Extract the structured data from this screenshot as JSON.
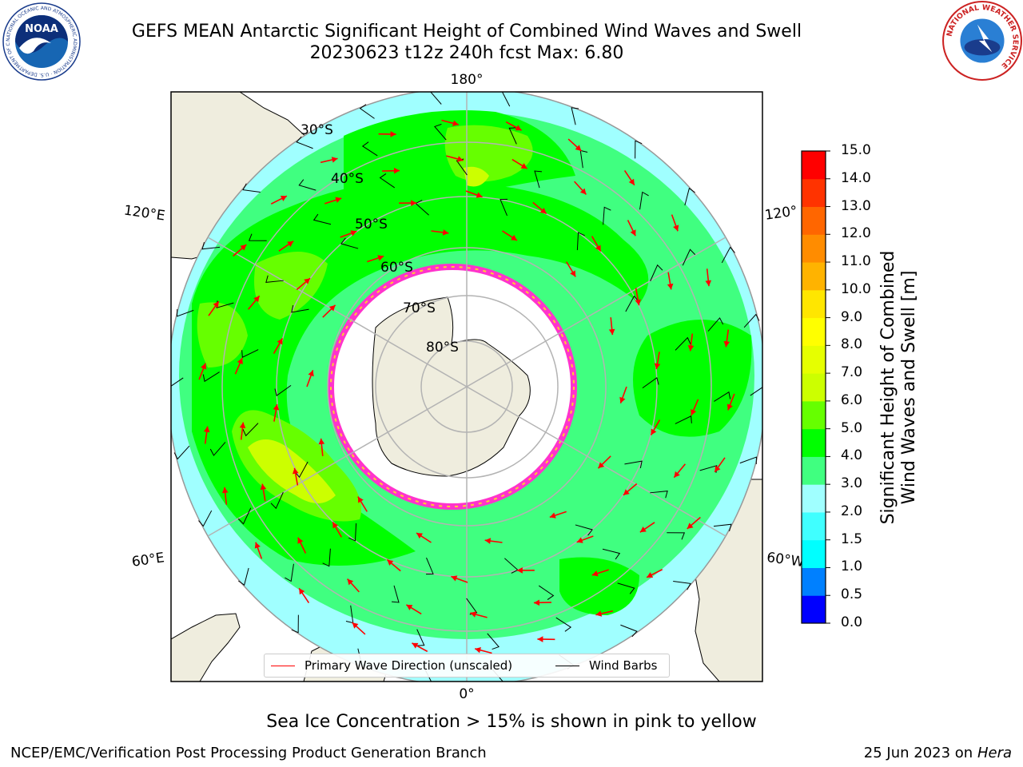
{
  "header": {
    "title_line1": "GEFS MEAN Antarctic Significant Height of Combined Wind Waves and Swell",
    "title_line2": "20230623 t12z 240h fcst   Max: 6.80"
  },
  "logos": {
    "left": {
      "text": "NOAA",
      "ring_text": "NATIONAL OCEANIC AND ATMOSPHERIC ADMINISTRATION · U.S. DEPARTMENT OF COMMERCE",
      "icon": "noaa-logo-icon"
    },
    "right": {
      "ring_text": "NATIONAL WEATHER SERVICE",
      "icon": "nws-logo-icon"
    }
  },
  "map": {
    "projection": "south-polar-stereographic",
    "longitude_labels": [
      "180°",
      "120°E",
      "120°",
      "60°E",
      "60°W",
      "0°"
    ],
    "latitude_labels": [
      "30°S",
      "40°S",
      "50°S",
      "60°S",
      "70°S",
      "80°S"
    ],
    "colors": {
      "land": "#efedde",
      "ice": "#ffffff",
      "ice_edge": "#ff33cc",
      "grid": "#b3b3b3",
      "arrow": "#ff0000",
      "barb": "#000000"
    }
  },
  "colorbar": {
    "title_line1": "Significant Height of Combined",
    "title_line2": "Wind Waves and Swell [m]",
    "ticks": [
      "15.0",
      "14.0",
      "13.0",
      "12.0",
      "11.0",
      "10.0",
      "9.0",
      "8.0",
      "7.0",
      "6.0",
      "5.0",
      "4.0",
      "3.0",
      "2.0",
      "1.5",
      "1.0",
      "0.5",
      "0.0"
    ],
    "bands": [
      {
        "from": 0.0,
        "to": 0.5,
        "color": "#0000ff"
      },
      {
        "from": 0.5,
        "to": 1.0,
        "color": "#0080ff"
      },
      {
        "from": 1.0,
        "to": 1.5,
        "color": "#00ffff"
      },
      {
        "from": 1.5,
        "to": 2.0,
        "color": "#40ffff"
      },
      {
        "from": 2.0,
        "to": 3.0,
        "color": "#a0ffff"
      },
      {
        "from": 3.0,
        "to": 4.0,
        "color": "#40ff80"
      },
      {
        "from": 4.0,
        "to": 5.0,
        "color": "#00ff00"
      },
      {
        "from": 5.0,
        "to": 6.0,
        "color": "#66ff00"
      },
      {
        "from": 6.0,
        "to": 7.0,
        "color": "#ccff00"
      },
      {
        "from": 7.0,
        "to": 8.0,
        "color": "#e6ff00"
      },
      {
        "from": 8.0,
        "to": 9.0,
        "color": "#ffff00"
      },
      {
        "from": 9.0,
        "to": 10.0,
        "color": "#ffe600"
      },
      {
        "from": 10.0,
        "to": 11.0,
        "color": "#ffb300"
      },
      {
        "from": 11.0,
        "to": 12.0,
        "color": "#ff8c00"
      },
      {
        "from": 12.0,
        "to": 13.0,
        "color": "#ff6600"
      },
      {
        "from": 13.0,
        "to": 14.0,
        "color": "#ff3300"
      },
      {
        "from": 14.0,
        "to": 15.0,
        "color": "#ff0000"
      }
    ]
  },
  "legend": {
    "wave_label": "Primary Wave Direction (unscaled)",
    "barb_label": "Wind Barbs"
  },
  "footer": {
    "note": "Sea Ice Concentration > 15% is shown in pink to yellow",
    "credit": "NCEP/EMC/Verification Post Processing Product Generation Branch",
    "date": "25 Jun 2023 on",
    "host": "Hera"
  }
}
